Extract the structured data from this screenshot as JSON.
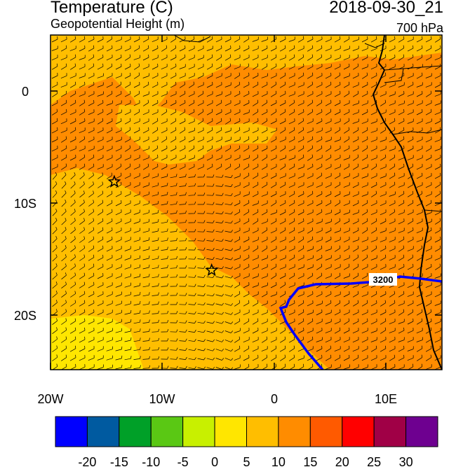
{
  "header": {
    "title": "Temperature (C)",
    "subtitle": "Geopotential Height (m)",
    "datetime": "2018-09-30_21",
    "level": "700 hPa"
  },
  "axes": {
    "lon_labels": [
      "20W",
      "10W",
      "0",
      "10E"
    ],
    "lat_labels": [
      "0",
      "10S",
      "20S"
    ]
  },
  "contour_label": "3200",
  "markers": [
    {
      "name": "star-marker",
      "lon": -14.3,
      "lat": -8.1
    },
    {
      "name": "star-marker",
      "lon": -5.6,
      "lat": -16.0
    }
  ],
  "colorbar": {
    "labels": [
      "-20",
      "-15",
      "-10",
      "-5",
      "0",
      "5",
      "10",
      "15",
      "20",
      "25",
      "30"
    ],
    "colors": [
      "#0000ff",
      "#005aa0",
      "#00a028",
      "#5ac814",
      "#c8f000",
      "#ffe600",
      "#ffbe00",
      "#ff8c00",
      "#ff5a00",
      "#ff0000",
      "#a00046",
      "#6e0090"
    ]
  },
  "field_colors": {
    "warm": "#ff8c00",
    "mid": "#ffbe00",
    "cool": "#ffe600",
    "contour": "#0000ff",
    "coast": "#000000"
  }
}
